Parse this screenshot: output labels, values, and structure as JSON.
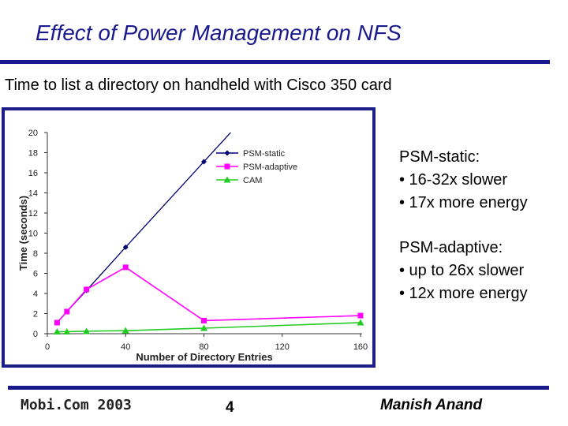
{
  "slide": {
    "title": "Effect of Power Management on NFS",
    "subtitle": "Time to list a directory on handheld with Cisco 350 card",
    "notes": [
      {
        "heading": "PSM-static:",
        "bullets": [
          "• 16-32x slower",
          "• 17x more energy"
        ]
      },
      {
        "heading": "PSM-adaptive:",
        "bullets": [
          "• up to 26x slower",
          "• 12x more energy"
        ]
      }
    ],
    "footer": {
      "left": "Mobi.Com 2003",
      "center": "4",
      "right": "Manish Anand"
    }
  },
  "colors": {
    "accent": "#1a1a8c",
    "chart_border": "#1c1c8a",
    "psm_static": "#00006e",
    "psm_adaptive": "#ff00ff",
    "cam": "#22cc22"
  },
  "chart_data": {
    "type": "line",
    "title": "",
    "xlabel": "Number of Directory Entries",
    "ylabel": "Time (seconds)",
    "xlim": [
      0,
      160
    ],
    "ylim": [
      0,
      20
    ],
    "x_ticks": [
      "0",
      "40",
      "80",
      "120",
      "160"
    ],
    "y_ticks": [
      "0",
      "2",
      "4",
      "6",
      "8",
      "10",
      "12",
      "14",
      "16",
      "18",
      "20"
    ],
    "legend_position": "top-right",
    "grid": false,
    "series": [
      {
        "name": "PSM-static",
        "color": "#00006e",
        "marker": "diamond",
        "points": [
          [
            5,
            1.1
          ],
          [
            10,
            2.2
          ],
          [
            20,
            4.3
          ],
          [
            40,
            8.6
          ],
          [
            80,
            17.1
          ],
          [
            96,
            20.5
          ]
        ]
      },
      {
        "name": "PSM-adaptive",
        "color": "#ff00ff",
        "marker": "square",
        "points": [
          [
            5,
            1.1
          ],
          [
            10,
            2.2
          ],
          [
            20,
            4.4
          ],
          [
            40,
            6.6
          ],
          [
            80,
            1.3
          ],
          [
            160,
            1.8
          ]
        ]
      },
      {
        "name": "CAM",
        "color": "#22cc22",
        "marker": "triangle",
        "points": [
          [
            5,
            0.2
          ],
          [
            10,
            0.2
          ],
          [
            20,
            0.25
          ],
          [
            40,
            0.3
          ],
          [
            80,
            0.55
          ],
          [
            160,
            1.1
          ]
        ]
      }
    ]
  }
}
